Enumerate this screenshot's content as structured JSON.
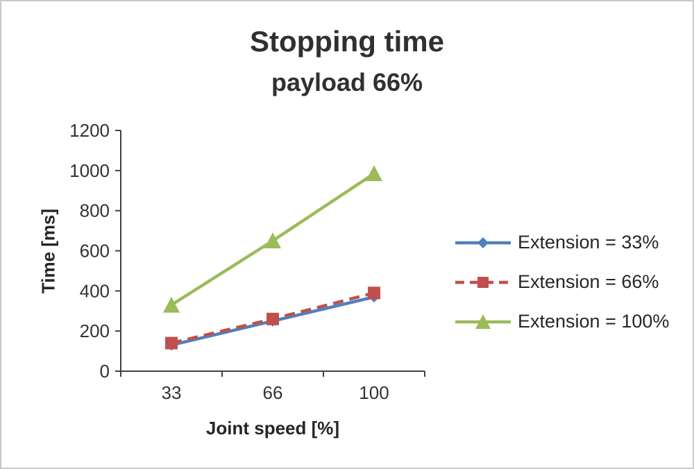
{
  "chart_data": {
    "type": "line",
    "title": "Stopping time",
    "subtitle": "payload 66%",
    "xlabel": "Joint speed [%]",
    "ylabel": "Time [ms]",
    "categories": [
      "33",
      "66",
      "100"
    ],
    "ylim": [
      0,
      1200
    ],
    "ytick_step": 200,
    "grid": false,
    "legend_position": "right",
    "axis_color": "#404040",
    "series": [
      {
        "name": "Extension = 33%",
        "values": [
          130,
          250,
          370
        ],
        "color": "#4F81BD",
        "marker": "diamond",
        "dash": "solid"
      },
      {
        "name": "Extension = 66%",
        "values": [
          140,
          260,
          390
        ],
        "color": "#C0504D",
        "marker": "square",
        "dash": "dashed"
      },
      {
        "name": "Extension = 100%",
        "values": [
          330,
          650,
          985
        ],
        "color": "#9BBB59",
        "marker": "triangle",
        "dash": "solid"
      }
    ]
  }
}
